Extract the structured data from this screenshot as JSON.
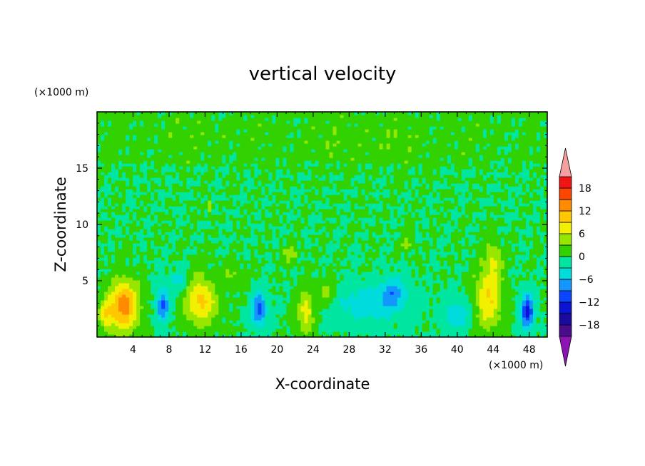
{
  "chart_data": {
    "type": "heatmap",
    "title": "vertical velocity",
    "xlabel": "X-coordinate",
    "ylabel": "Z-coordinate",
    "x_unit": "(×1000 m)",
    "y_unit": "(×1000 m)",
    "xlim": [
      0,
      50
    ],
    "ylim": [
      0,
      20
    ],
    "x_ticks": [
      4,
      8,
      12,
      16,
      20,
      24,
      28,
      32,
      36,
      40,
      44,
      48
    ],
    "y_ticks": [
      5,
      10,
      15
    ],
    "x_tick_labels": [
      "4",
      "8",
      "12",
      "16",
      "20",
      "24",
      "28",
      "32",
      "36",
      "40",
      "44",
      "48"
    ],
    "y_tick_labels": [
      "5",
      "10",
      "15"
    ],
    "colorbar": {
      "levels": [
        -21,
        -18,
        -15,
        -12,
        -9,
        -6,
        -3,
        0,
        3,
        6,
        9,
        12,
        15,
        18,
        21
      ],
      "tick_values": [
        18,
        12,
        6,
        0,
        -6,
        -12,
        -18
      ],
      "tick_labels": [
        "18",
        "12",
        "6",
        "0",
        "−6",
        "−12",
        "−18"
      ],
      "colors": [
        "#4a0b8c",
        "#1a0aa0",
        "#0a14d2",
        "#0a46ff",
        "#1496ff",
        "#00dcdc",
        "#00e6a0",
        "#32d200",
        "#96e600",
        "#f0f000",
        "#ffc800",
        "#ff8c00",
        "#ff4600",
        "#f01414"
      ],
      "over_color": "#f5a0a0",
      "under_color": "#8c14b4"
    },
    "features": [
      {
        "x": 3.0,
        "z": 2.8,
        "value": 14,
        "sx": 1.1,
        "sz": 1.6
      },
      {
        "x": 1.0,
        "z": 2.0,
        "value": 7,
        "sx": 0.6,
        "sz": 1.0
      },
      {
        "x": 7.3,
        "z": 2.8,
        "value": -10,
        "sx": 0.5,
        "sz": 1.0
      },
      {
        "x": 11.5,
        "z": 3.2,
        "value": 10,
        "sx": 1.2,
        "sz": 1.5
      },
      {
        "x": 18.0,
        "z": 2.5,
        "value": -10,
        "sx": 0.6,
        "sz": 1.1
      },
      {
        "x": 23.2,
        "z": 2.2,
        "value": 8,
        "sx": 0.6,
        "sz": 1.3
      },
      {
        "x": 25.5,
        "z": 4.0,
        "value": 5,
        "sx": 0.8,
        "sz": 0.8
      },
      {
        "x": 30.0,
        "z": 3.0,
        "value": -5,
        "sx": 2.8,
        "sz": 1.2
      },
      {
        "x": 33.0,
        "z": 4.0,
        "value": -6,
        "sx": 1.0,
        "sz": 1.0
      },
      {
        "x": 43.5,
        "z": 3.5,
        "value": 9,
        "sx": 1.0,
        "sz": 2.0
      },
      {
        "x": 44.0,
        "z": 7.0,
        "value": 5,
        "sx": 0.6,
        "sz": 1.2
      },
      {
        "x": 47.8,
        "z": 2.3,
        "value": -13,
        "sx": 0.5,
        "sz": 1.1
      },
      {
        "x": 9.0,
        "z": 5.0,
        "value": -4,
        "sx": 0.8,
        "sz": 0.8
      },
      {
        "x": 15.0,
        "z": 5.5,
        "value": 3,
        "sx": 1.0,
        "sz": 0.8
      },
      {
        "x": 40.0,
        "z": 2.0,
        "value": -5,
        "sx": 1.0,
        "sz": 1.0
      },
      {
        "x": 12.5,
        "z": 11.5,
        "value": 5,
        "sx": 0.2,
        "sz": 0.5
      },
      {
        "x": 21.5,
        "z": 7.3,
        "value": 5,
        "sx": 0.6,
        "sz": 0.5
      },
      {
        "x": 34.5,
        "z": 8.3,
        "value": 4,
        "sx": 0.5,
        "sz": 0.5
      },
      {
        "x": 30.0,
        "z": 17.5,
        "value": 1.5,
        "sx": 6.0,
        "sz": 1.5
      },
      {
        "x": 10.0,
        "z": 18.0,
        "value": 1.0,
        "sx": 5.0,
        "sz": 1.2
      }
    ]
  }
}
